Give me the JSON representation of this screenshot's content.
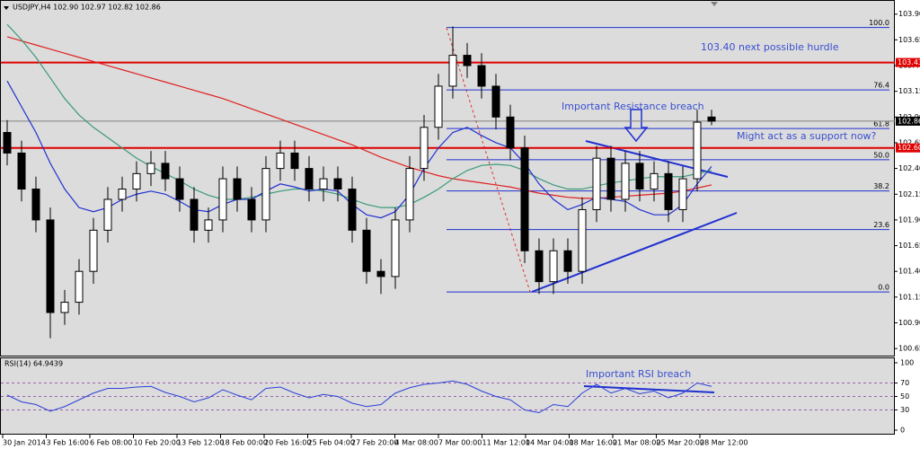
{
  "chart_data": [
    {
      "type": "candlestick",
      "title": "USDJPY,H4 102.90 102.97 102.82 102.86",
      "x_labels": [
        "30 Jan 2014",
        "3 Feb 16:00",
        "6 Feb 08:00",
        "10 Feb 20:00",
        "13 Feb 12:00",
        "18 Feb 00:00",
        "20 Feb 16:00",
        "25 Feb 04:00",
        "27 Feb 20:00",
        "4 Mar 08:00",
        "7 Mar 00:00",
        "11 Mar 12:00",
        "14 Mar 04:00",
        "18 Mar 16:00",
        "21 Mar 08:00",
        "25 Mar 20:00",
        "28 Mar 12:00"
      ],
      "open": [
        102.75,
        102.55,
        102.2,
        101.9,
        101.0,
        101.1,
        101.4,
        101.8,
        102.1,
        102.2,
        102.35,
        102.45,
        102.3,
        102.1,
        101.8,
        101.9,
        102.3,
        102.1,
        101.9,
        102.4,
        102.55,
        102.4,
        102.2,
        102.3,
        102.2,
        101.8,
        101.4,
        101.35,
        101.9,
        102.4,
        102.8,
        103.2,
        103.5,
        103.4,
        103.2,
        102.9,
        102.6,
        101.6,
        101.3,
        101.6,
        101.4,
        102.0,
        102.5,
        102.1,
        102.45,
        102.2,
        102.35,
        102.0,
        102.3,
        102.9
      ],
      "high": [
        102.87,
        102.67,
        102.32,
        102.02,
        101.22,
        101.52,
        101.92,
        102.22,
        102.32,
        102.47,
        102.57,
        102.57,
        102.42,
        102.22,
        102.02,
        102.42,
        102.42,
        102.22,
        102.52,
        102.67,
        102.67,
        102.52,
        102.42,
        102.42,
        102.32,
        101.92,
        101.52,
        102.02,
        102.52,
        102.92,
        103.32,
        103.78,
        103.62,
        103.52,
        103.32,
        103.02,
        102.72,
        101.72,
        101.72,
        101.72,
        102.12,
        102.62,
        102.62,
        102.57,
        102.57,
        102.47,
        102.47,
        102.42,
        102.97,
        102.97
      ],
      "low": [
        102.43,
        102.08,
        101.78,
        100.75,
        100.88,
        100.98,
        101.28,
        101.68,
        101.98,
        102.08,
        102.23,
        102.18,
        101.98,
        101.68,
        101.68,
        101.78,
        101.98,
        101.78,
        101.78,
        102.28,
        102.28,
        102.08,
        102.08,
        102.08,
        101.68,
        101.28,
        101.18,
        101.23,
        101.78,
        102.28,
        102.68,
        103.08,
        103.28,
        103.08,
        102.78,
        102.48,
        101.48,
        101.18,
        101.18,
        101.28,
        101.28,
        101.88,
        101.98,
        101.98,
        102.08,
        102.08,
        101.88,
        101.88,
        102.18,
        102.82
      ],
      "close": [
        102.55,
        102.2,
        101.9,
        101.0,
        101.1,
        101.4,
        101.8,
        102.1,
        102.2,
        102.35,
        102.45,
        102.3,
        102.1,
        101.8,
        101.9,
        102.3,
        102.1,
        101.9,
        102.4,
        102.55,
        102.4,
        102.2,
        102.3,
        102.2,
        101.8,
        101.4,
        101.35,
        101.9,
        102.4,
        102.8,
        103.2,
        103.5,
        103.4,
        103.2,
        102.9,
        102.6,
        101.6,
        101.3,
        101.6,
        101.4,
        102.0,
        102.5,
        102.1,
        102.45,
        102.2,
        102.35,
        102.0,
        102.3,
        102.85,
        102.86
      ],
      "up_color": "#ffffff",
      "down_color": "#000000",
      "lines": [
        {
          "color": "#e02020",
          "values": [
            103.68,
            103.64,
            103.6,
            103.56,
            103.52,
            103.48,
            103.44,
            103.4,
            103.36,
            103.32,
            103.28,
            103.24,
            103.2,
            103.16,
            103.12,
            103.08,
            103.03,
            102.98,
            102.93,
            102.88,
            102.83,
            102.78,
            102.73,
            102.68,
            102.63,
            102.57,
            102.51,
            102.46,
            102.41,
            102.37,
            102.33,
            102.3,
            102.28,
            102.26,
            102.24,
            102.22,
            102.19,
            102.16,
            102.14,
            102.12,
            102.11,
            102.11,
            102.12,
            102.13,
            102.14,
            102.15,
            102.16,
            102.18,
            102.21,
            102.24
          ]
        },
        {
          "color": "#3a9a7a",
          "values": [
            103.8,
            103.65,
            103.48,
            103.28,
            103.08,
            102.92,
            102.8,
            102.7,
            102.6,
            102.5,
            102.42,
            102.35,
            102.28,
            102.2,
            102.14,
            102.1,
            102.1,
            102.12,
            102.15,
            102.18,
            102.2,
            102.2,
            102.18,
            102.15,
            102.1,
            102.05,
            102.02,
            102.02,
            102.05,
            102.12,
            102.2,
            102.3,
            102.38,
            102.43,
            102.44,
            102.43,
            102.38,
            102.3,
            102.24,
            102.2,
            102.2,
            102.23,
            102.26,
            102.28,
            102.3,
            102.32,
            102.32,
            102.32,
            102.35,
            102.38
          ]
        },
        {
          "color": "#2030d0",
          "values": [
            103.25,
            103.0,
            102.75,
            102.45,
            102.2,
            102.02,
            101.98,
            102.02,
            102.1,
            102.15,
            102.18,
            102.15,
            102.08,
            102.0,
            101.98,
            102.05,
            102.1,
            102.1,
            102.18,
            102.25,
            102.22,
            102.18,
            102.2,
            102.18,
            102.05,
            101.95,
            101.92,
            101.98,
            102.15,
            102.4,
            102.6,
            102.75,
            102.8,
            102.72,
            102.65,
            102.6,
            102.45,
            102.25,
            102.1,
            102.0,
            102.05,
            102.12,
            102.1,
            102.08,
            102.0,
            101.95,
            101.95,
            102.05,
            102.25,
            102.42
          ]
        }
      ],
      "ylim": [
        100.59,
        104.02
      ],
      "yticks": [
        {
          "value": 103.9,
          "label": "103.90"
        },
        103.65,
        {
          "value": 103.4,
          "label": "103.40"
        },
        103.15,
        {
          "value": 102.9,
          "label": "102.90"
        },
        102.65,
        {
          "value": 102.4,
          "label": "102.40"
        },
        102.15,
        {
          "value": 101.9,
          "label": "101.90"
        },
        101.65,
        {
          "value": 101.4,
          "label": "101.40"
        },
        101.15,
        {
          "value": 100.9,
          "label": "100.90"
        },
        100.65
      ],
      "levels": [
        {
          "value": 103.43,
          "label": "103.43",
          "color": "#e00000"
        },
        {
          "value": 102.6,
          "label": "102.60",
          "color": "#e00000"
        }
      ],
      "current": {
        "value": 102.86,
        "label": "102.86",
        "color": "#808080"
      },
      "fibonacci": {
        "low": 101.2,
        "high": 103.77,
        "color": "#2030d0",
        "levels": [
          {
            "value": 100,
            "label": "100.0"
          },
          76.4,
          61.8,
          {
            "value": 50,
            "label": "50.0"
          },
          38.2,
          23.6,
          {
            "value": 0,
            "label": "0.0"
          }
        ]
      },
      "annotations": [
        "103.40 next possible hurdle",
        "Important Resistance breach",
        "Might act as a support now?"
      ]
    },
    {
      "type": "line",
      "title": "RSI(14) 64.9439",
      "color": "#2a40d8",
      "values": [
        52,
        42,
        38,
        28,
        35,
        45,
        55,
        62,
        62,
        64,
        65,
        56,
        50,
        42,
        48,
        60,
        52,
        45,
        62,
        64,
        55,
        48,
        53,
        50,
        40,
        35,
        38,
        55,
        63,
        68,
        70,
        73,
        68,
        58,
        50,
        45,
        30,
        26,
        38,
        35,
        55,
        68,
        55,
        62,
        54,
        58,
        48,
        55,
        70,
        64.9439
      ],
      "ylim": [
        0,
        100
      ],
      "yticks": [
        100,
        70,
        50,
        30,
        0
      ],
      "levels": [
        70,
        50,
        30
      ],
      "level_color": "#9b5fb0",
      "annotations": [
        "Important RSI breach"
      ]
    }
  ]
}
